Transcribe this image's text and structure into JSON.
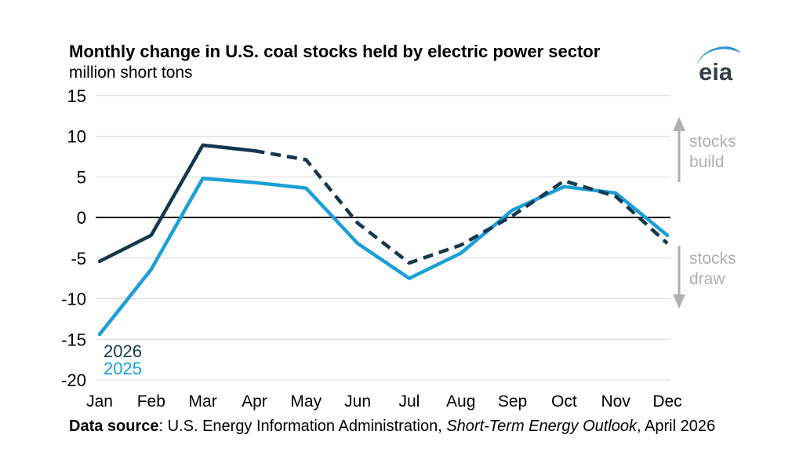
{
  "header": {
    "logo_text": "eia"
  },
  "colors": {
    "navy": "#14384e",
    "blue": "#1b9ed9",
    "grid": "#d9d9d9",
    "zero_line": "#000000",
    "annotation_gray": "#b0b0b0",
    "logo_text": "#333f48",
    "logo_swoosh": "#2596d6",
    "text": "#000000"
  },
  "chart_data": {
    "type": "line",
    "title": "Monthly change in U.S. coal stocks held by electric power sector",
    "subtitle": "million short tons",
    "categories": [
      "Jan",
      "Feb",
      "Mar",
      "Apr",
      "May",
      "Jun",
      "Jul",
      "Aug",
      "Sep",
      "Oct",
      "Nov",
      "Dec"
    ],
    "yticks": [
      15,
      10,
      5,
      0,
      -5,
      -10,
      -15,
      -20
    ],
    "ylim": [
      -20,
      15
    ],
    "grid": true,
    "zero_line": true,
    "legend_position": "bottom-left",
    "series": [
      {
        "name": "2026",
        "color": "#14384e",
        "style": "solid-then-dashed",
        "dash_from_index": 3,
        "values": [
          -5.4,
          -2.2,
          8.9,
          8.2,
          7.1,
          -0.7,
          -5.6,
          -3.4,
          0.2,
          4.5,
          2.6,
          -3.2
        ]
      },
      {
        "name": "2025",
        "color": "#1b9ed9",
        "style": "solid",
        "values": [
          -14.4,
          -6.4,
          4.8,
          4.3,
          3.6,
          -3.2,
          -7.5,
          -4.4,
          0.9,
          3.8,
          3.0,
          -2.2
        ]
      }
    ],
    "annotations": [
      {
        "line1": "stocks",
        "line2": "build",
        "direction": "up"
      },
      {
        "line1": "stocks",
        "line2": "draw",
        "direction": "down"
      }
    ]
  },
  "footer": {
    "bold": "Data source",
    "normal1": ": U.S. Energy Information Administration, ",
    "italic": "Short-Term Energy Outlook",
    "normal2": ", April 2026"
  }
}
